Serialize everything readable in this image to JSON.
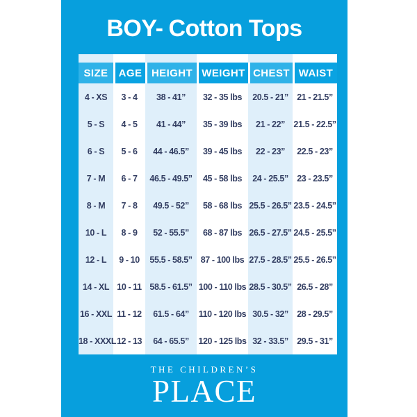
{
  "card": {
    "title_bold": "BOY-",
    "title_rest": "Cotton Tops"
  },
  "chart_data": {
    "type": "table",
    "title": "BOY- Cotton Tops",
    "columns": [
      "SIZE",
      "AGE",
      "HEIGHT",
      "WEIGHT",
      "CHEST",
      "WAIST"
    ],
    "rows": [
      [
        "4 - XS",
        "3 - 4",
        "38 - 41”",
        "32 - 35 lbs",
        "20.5 - 21”",
        "21 - 21.5”"
      ],
      [
        "5 - S",
        "4 - 5",
        "41 - 44”",
        "35 - 39 lbs",
        "21 - 22”",
        "21.5 - 22.5”"
      ],
      [
        "6 - S",
        "5 - 6",
        "44 - 46.5”",
        "39 - 45 lbs",
        "22 - 23”",
        "22.5 - 23”"
      ],
      [
        "7 - M",
        "6 - 7",
        "46.5 - 49.5”",
        "45 - 58 lbs",
        "24 - 25.5”",
        "23 - 23.5”"
      ],
      [
        "8 - M",
        "7 - 8",
        "49.5 - 52”",
        "58 - 68 lbs",
        "25.5 - 26.5”",
        "23.5 - 24.5”"
      ],
      [
        "10 - L",
        "8 - 9",
        "52 - 55.5”",
        "68 - 87 lbs",
        "26.5 - 27.5”",
        "24.5 - 25.5”"
      ],
      [
        "12 - L",
        "9 - 10",
        "55.5 - 58.5”",
        "87 - 100 lbs",
        "27.5 - 28.5”",
        "25.5 - 26.5”"
      ],
      [
        "14 - XL",
        "10 - 11",
        "58.5 - 61.5”",
        "100 - 110 lbs",
        "28.5 - 30.5”",
        "26.5 - 28”"
      ],
      [
        "16 - XXL",
        "11 - 12",
        "61.5 - 64”",
        "110 - 120 lbs",
        "30.5 - 32”",
        "28 - 29.5”"
      ],
      [
        "18 - XXXL",
        "12 - 13",
        "64 - 65.5”",
        "120 - 125 lbs",
        "32 - 33.5”",
        "29.5 - 31”"
      ]
    ]
  },
  "footer": {
    "brand_line1": "THE CHILDREN’S",
    "brand_line2": "PLACE"
  },
  "colors": {
    "card_blue": "#079FDD",
    "header_light": "#2FB2E8",
    "header_dark": "#0AA3E2",
    "stripe_pale": "#DFEFFA",
    "body_text": "#343F63"
  }
}
